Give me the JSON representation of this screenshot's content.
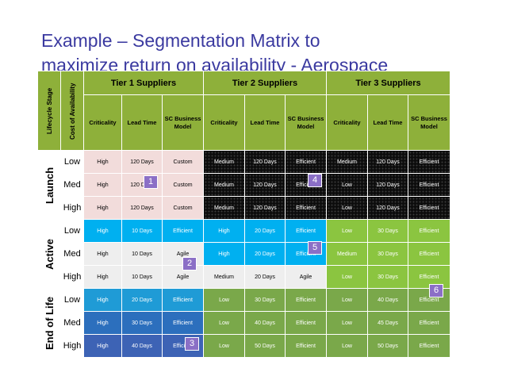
{
  "title": {
    "line1": "Example – Segmentation Matrix to",
    "line2": "maximize return on availability - Aerospace"
  },
  "headers": {
    "lifecycle_stage": "Lifecycle Stage",
    "cost_of_availability": "Cost of Availability",
    "tiers": [
      "Tier 1 Suppliers",
      "Tier 2 Suppliers",
      "Tier 3 Suppliers"
    ],
    "columns": [
      "Criticality",
      "Lead Time",
      "SC Business Model"
    ]
  },
  "stages": [
    {
      "name": "Launch",
      "rows": [
        {
          "avail": "Low",
          "cells": [
            "High",
            "120 Days",
            "Custom",
            "Medium",
            "120 Days",
            "Efficient",
            "Medium",
            "120 Days",
            "Efficient"
          ]
        },
        {
          "avail": "Med",
          "cells": [
            "High",
            "120 Days",
            "Custom",
            "Medium",
            "120 Days",
            "Efficient",
            "Low",
            "120 Days",
            "Efficient"
          ]
        },
        {
          "avail": "High",
          "cells": [
            "High",
            "120 Days",
            "Custom",
            "Medium",
            "120 Days",
            "Efficient",
            "Low",
            "120 Days",
            "Efficient"
          ]
        }
      ]
    },
    {
      "name": "Active",
      "rows": [
        {
          "avail": "Low",
          "cells": [
            "High",
            "10 Days",
            "Efficient",
            "High",
            "20 Days",
            "Efficient",
            "Low",
            "30 Days",
            "Efficient"
          ]
        },
        {
          "avail": "Med",
          "cells": [
            "High",
            "10 Days",
            "Agile",
            "High",
            "20 Days",
            "Efficient",
            "Medium",
            "30 Days",
            "Efficient"
          ]
        },
        {
          "avail": "High",
          "cells": [
            "High",
            "10 Days",
            "Agile",
            "Medium",
            "20 Days",
            "Agile",
            "Low",
            "30 Days",
            "Efficient"
          ]
        }
      ]
    },
    {
      "name": "End of Life",
      "rows": [
        {
          "avail": "Low",
          "cells": [
            "High",
            "20 Days",
            "Efficient",
            "Low",
            "30 Days",
            "Efficient",
            "Low",
            "40 Days",
            "Efficient"
          ]
        },
        {
          "avail": "Med",
          "cells": [
            "High",
            "30 Days",
            "Efficient",
            "Low",
            "40 Days",
            "Efficient",
            "Low",
            "45 Days",
            "Efficient"
          ]
        },
        {
          "avail": "High",
          "cells": [
            "High",
            "40 Days",
            "Efficient",
            "Low",
            "50 Days",
            "Efficient",
            "Low",
            "50 Days",
            "Efficient"
          ]
        }
      ]
    }
  ],
  "badges": [
    "1",
    "2",
    "3",
    "4",
    "5",
    "6"
  ],
  "colors": {
    "title": "#3b3aa0",
    "header_green": "#8eb03a",
    "launch_tier1": "#f2dcdb",
    "launch_tier23": "#0d0d0d",
    "active_tier1": "#00b0f0",
    "active_tier2": "#00b0f0",
    "active_tier3": "#8bc540",
    "eol_tier1": "#2c6fbd",
    "eol_tier23": "#7aa84a",
    "badge": "#8b6fc6"
  }
}
